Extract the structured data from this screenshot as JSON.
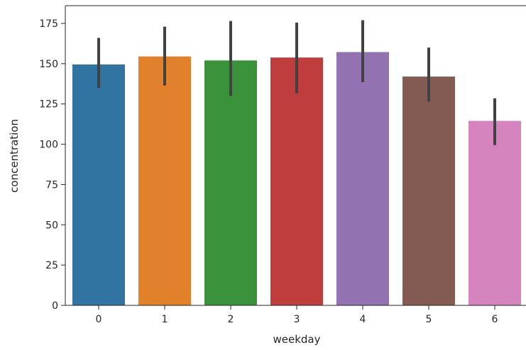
{
  "chart_data": {
    "type": "bar",
    "title": "",
    "xlabel": "weekday",
    "ylabel": "concentration",
    "categories": [
      "0",
      "1",
      "2",
      "3",
      "4",
      "5",
      "6"
    ],
    "values": [
      149.5,
      154.5,
      152.0,
      153.8,
      157.2,
      142.0,
      114.5
    ],
    "error_low": [
      135.0,
      136.5,
      130.0,
      131.5,
      138.5,
      126.5,
      99.5
    ],
    "error_high": [
      166.0,
      173.0,
      176.5,
      175.5,
      177.0,
      160.0,
      128.5
    ],
    "colors": [
      "#3274a1",
      "#e1812c",
      "#3a923a",
      "#c03d3e",
      "#9372b2",
      "#845b53",
      "#d684bd"
    ],
    "error_color": "#424242",
    "ylim": [
      0,
      186
    ],
    "yticks": [
      0,
      25,
      50,
      75,
      100,
      125,
      150,
      175
    ],
    "ytick_labels": [
      "0",
      "25",
      "50",
      "75",
      "100",
      "125",
      "150",
      "175"
    ],
    "grid": false,
    "legend": "none"
  }
}
